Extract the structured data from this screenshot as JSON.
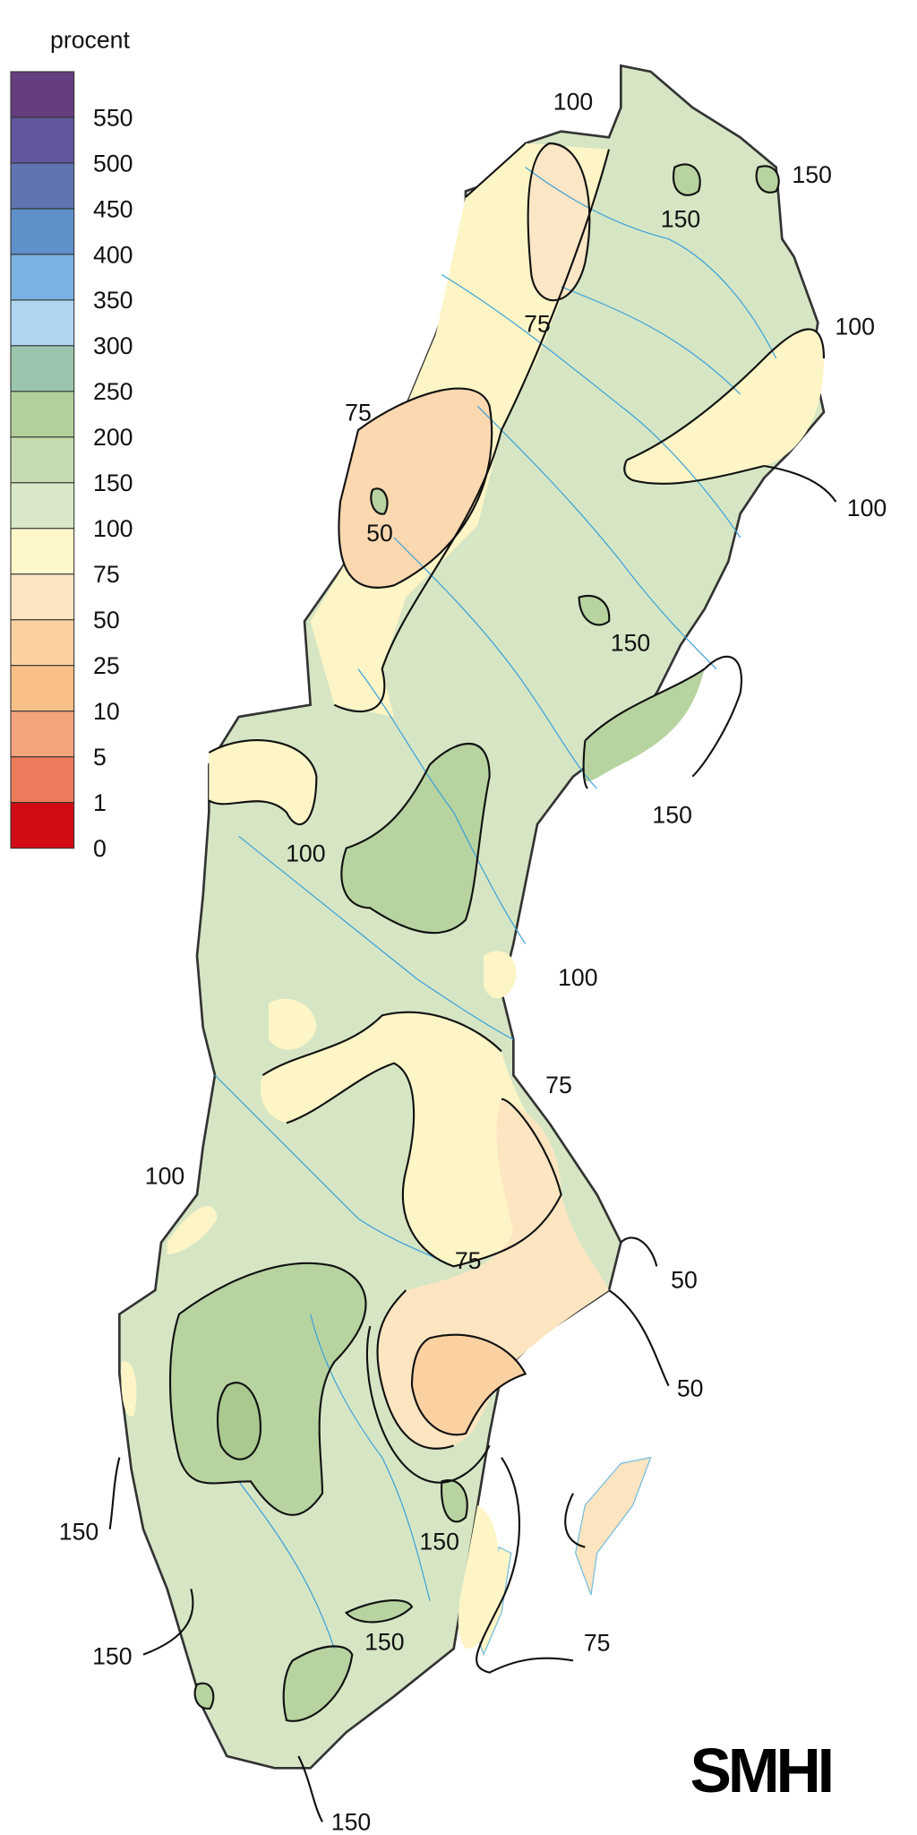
{
  "legend": {
    "title": "procent",
    "labels": [
      "550",
      "500",
      "450",
      "400",
      "350",
      "300",
      "250",
      "200",
      "150",
      "100",
      "75",
      "50",
      "25",
      "10",
      "5",
      "1",
      "0"
    ],
    "colors": [
      "#643e7e",
      "#62569c",
      "#5f74b0",
      "#5f90c9",
      "#7ab3e3",
      "#b0d6f2",
      "#9cc5ae",
      "#b3cf9a",
      "#c4dcaf",
      "#d9e8c8",
      "#fef7c9",
      "#fde5c1",
      "#fbd1a2",
      "#f8bf86",
      "#f2a47c",
      "#ec7b5c",
      "#d10c14"
    ]
  },
  "map": {
    "base_color": "#d6e6c4",
    "high_color": "#b7d3a0",
    "low_color": "#fdf5c6",
    "lower_color": "#fbd8b0",
    "river_color": "#3aa0d8"
  },
  "contour_labels": [
    "100",
    "150",
    "150",
    "75",
    "100",
    "100",
    "75",
    "50",
    "150",
    "150",
    "100",
    "100",
    "75",
    "100",
    "75",
    "50",
    "50",
    "150",
    "150",
    "150",
    "75",
    "150",
    "150"
  ],
  "logo": "SMHI"
}
